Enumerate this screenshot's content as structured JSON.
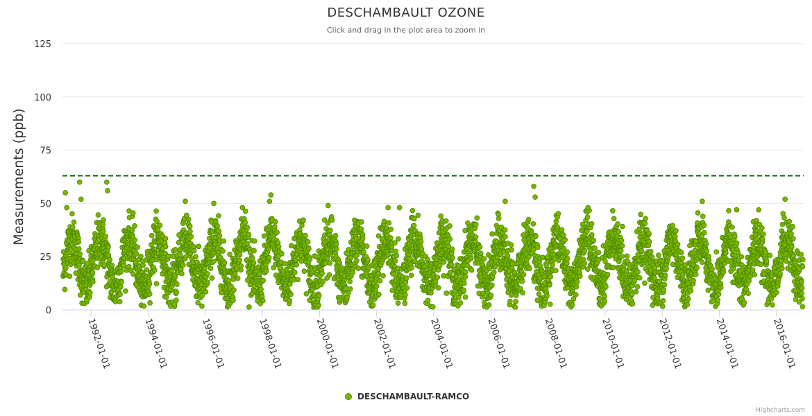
{
  "colors": {
    "series": "#7cb500",
    "series_stroke": "#4d8a00",
    "threshold": "#006400",
    "grid": "#e6e6e6",
    "axis": "#ccd6eb"
  },
  "chart_data": {
    "type": "scatter",
    "title": "DESCHAMBAULT OZONE",
    "subtitle": "Click and drag in the plot area to zoom in",
    "ylabel": "Measurements (ppb)",
    "xlabel": "",
    "ylim": [
      0,
      125
    ],
    "yticks": [
      0,
      25,
      50,
      75,
      100,
      125
    ],
    "xlim": [
      1991.0,
      2016.95
    ],
    "xticks": [
      {
        "value": 1992.0,
        "label": "1992-01-01"
      },
      {
        "value": 1994.0,
        "label": "1994-01-01"
      },
      {
        "value": 1996.0,
        "label": "1996-01-01"
      },
      {
        "value": 1998.0,
        "label": "1998-01-01"
      },
      {
        "value": 2000.0,
        "label": "2000-01-01"
      },
      {
        "value": 2002.0,
        "label": "2002-01-01"
      },
      {
        "value": 2004.0,
        "label": "2004-01-01"
      },
      {
        "value": 2006.0,
        "label": "2006-01-01"
      },
      {
        "value": 2008.0,
        "label": "2008-01-01"
      },
      {
        "value": 2010.0,
        "label": "2010-01-01"
      },
      {
        "value": 2012.0,
        "label": "2012-01-01"
      },
      {
        "value": 2014.0,
        "label": "2014-01-01"
      },
      {
        "value": 2016.0,
        "label": "2016-01-01"
      }
    ],
    "threshold": {
      "value": 63,
      "style": "dashed"
    },
    "grid": true,
    "legend": {
      "position": "bottom-center"
    },
    "series": [
      {
        "name": "DESCHAMBAULT-RAMCO",
        "note": "Daily ozone measurements; dense seasonal cycle ranging ~0-60 ppb, peaking each spring/summer",
        "seasonal_model": {
          "mean": 22,
          "amplitude": 11,
          "peak_month": 5,
          "noise": 6
        },
        "notable_points": [
          {
            "x": 1991.1,
            "y": 55
          },
          {
            "x": 1991.15,
            "y": 48
          },
          {
            "x": 1991.6,
            "y": 60
          },
          {
            "x": 1991.65,
            "y": 52
          },
          {
            "x": 1992.55,
            "y": 60
          },
          {
            "x": 1992.58,
            "y": 56
          },
          {
            "x": 1995.3,
            "y": 51
          },
          {
            "x": 1996.3,
            "y": 50
          },
          {
            "x": 1997.3,
            "y": 48
          },
          {
            "x": 1998.3,
            "y": 54
          },
          {
            "x": 1998.25,
            "y": 51
          },
          {
            "x": 2000.3,
            "y": 49
          },
          {
            "x": 2002.4,
            "y": 48
          },
          {
            "x": 2002.8,
            "y": 48
          },
          {
            "x": 2006.5,
            "y": 51
          },
          {
            "x": 2007.5,
            "y": 58
          },
          {
            "x": 2007.55,
            "y": 53
          },
          {
            "x": 2009.4,
            "y": 48
          },
          {
            "x": 2013.4,
            "y": 51
          },
          {
            "x": 2014.6,
            "y": 47
          },
          {
            "x": 2016.3,
            "y": 52
          }
        ]
      }
    ]
  },
  "credits": "Highcharts.com"
}
